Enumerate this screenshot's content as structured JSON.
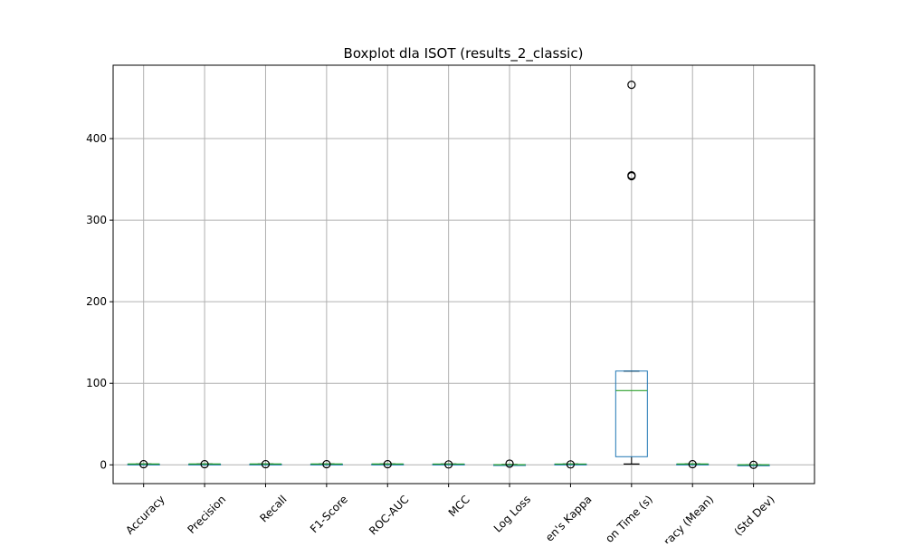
{
  "chart_data": {
    "type": "box",
    "title": "Boxplot dla ISOT (results_2_classic)",
    "xlabel": "",
    "ylabel": "",
    "ylim": [
      -23,
      490
    ],
    "grid": true,
    "y_ticks": [
      0,
      100,
      200,
      300,
      400
    ],
    "categories": [
      "Accuracy",
      "Precision",
      "Recall",
      "F1-Score",
      "ROC-AUC",
      "MCC",
      "Log Loss",
      "en's Kappa",
      "on Time (s)",
      "racy (Mean)",
      "(Std Dev)"
    ],
    "boxes": [
      {
        "min": 0.9,
        "q1": 0.95,
        "median": 0.98,
        "q3": 0.99,
        "max": 1.0,
        "outliers": [
          0.8
        ]
      },
      {
        "min": 0.9,
        "q1": 0.95,
        "median": 0.98,
        "q3": 0.99,
        "max": 1.0,
        "outliers": [
          0.8
        ]
      },
      {
        "min": 0.9,
        "q1": 0.95,
        "median": 0.98,
        "q3": 0.99,
        "max": 1.0,
        "outliers": [
          0.8
        ]
      },
      {
        "min": 0.9,
        "q1": 0.95,
        "median": 0.98,
        "q3": 0.99,
        "max": 1.0,
        "outliers": [
          0.8
        ]
      },
      {
        "min": 0.9,
        "q1": 0.95,
        "median": 0.98,
        "q3": 0.99,
        "max": 1.0,
        "outliers": [
          0.8
        ]
      },
      {
        "min": 0.8,
        "q1": 0.9,
        "median": 0.95,
        "q3": 0.98,
        "max": 1.0,
        "outliers": [
          0.5
        ]
      },
      {
        "min": 0.05,
        "q1": 0.1,
        "median": 0.15,
        "q3": 0.3,
        "max": 0.5,
        "outliers": [
          1.5
        ]
      },
      {
        "min": 0.8,
        "q1": 0.9,
        "median": 0.95,
        "q3": 0.98,
        "max": 1.0,
        "outliers": [
          0.5
        ]
      },
      {
        "min": 1,
        "q1": 10,
        "median": 91,
        "q3": 115,
        "max": 115,
        "outliers": [
          354,
          355,
          466
        ]
      },
      {
        "min": 0.9,
        "q1": 0.95,
        "median": 0.98,
        "q3": 0.99,
        "max": 1.0,
        "outliers": [
          0.8
        ]
      },
      {
        "min": 0.001,
        "q1": 0.003,
        "median": 0.005,
        "q3": 0.008,
        "max": 0.01,
        "outliers": [
          0.05
        ]
      }
    ],
    "colors": {
      "box": "#1f77b4",
      "median": "#2ca02c",
      "grid": "#b0b0b0",
      "whisker": "#000000"
    }
  }
}
